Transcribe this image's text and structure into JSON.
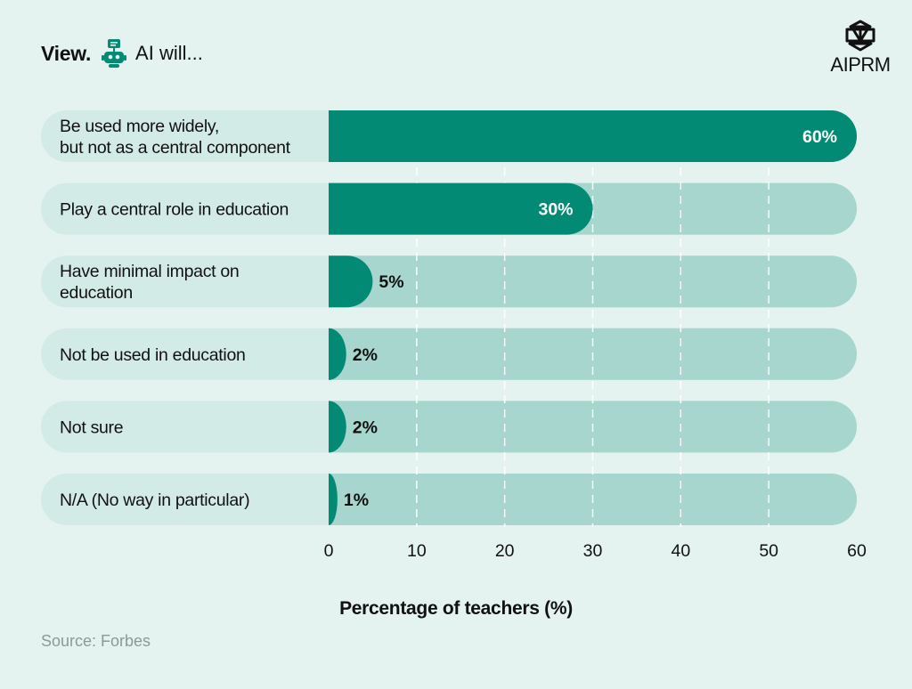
{
  "header": {
    "view_label": "View.",
    "question": "AI will..."
  },
  "brand": {
    "name": "AIPRM"
  },
  "source": "Source: Forbes",
  "colors": {
    "background": "#e4f3f0",
    "label_track": "#d2ebe6",
    "bar_track": "#a6d6ce",
    "bar_fill": "#028a74",
    "text": "#111111"
  },
  "chart_data": {
    "type": "bar",
    "orientation": "horizontal",
    "categories": [
      [
        "Be used more widely,",
        "but not as a central component"
      ],
      [
        "Play a central role in education"
      ],
      [
        "Have minimal impact on",
        "education"
      ],
      [
        "Not be used in education"
      ],
      [
        "Not sure"
      ],
      [
        "N/A (No way in particular)"
      ]
    ],
    "values": [
      60,
      30,
      5,
      2,
      2,
      1
    ],
    "value_labels": [
      "60%",
      "30%",
      "5%",
      "2%",
      "2%",
      "1%"
    ],
    "xlim": [
      0,
      60
    ],
    "xticks": [
      0,
      10,
      20,
      30,
      40,
      50,
      60
    ],
    "xlabel": "Percentage of teachers (%)",
    "grid": true
  }
}
